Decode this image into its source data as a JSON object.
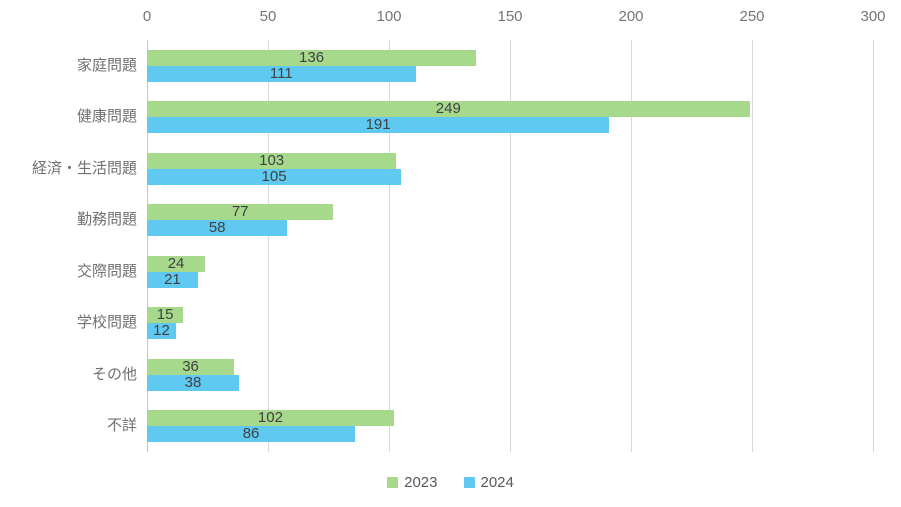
{
  "chart_data": {
    "type": "bar",
    "orientation": "horizontal",
    "title": "",
    "xlabel": "",
    "ylabel": "",
    "categories": [
      "家庭問題",
      "健康問題",
      "経済・生活問題",
      "勤務問題",
      "交際問題",
      "学校問題",
      "その他",
      "不詳"
    ],
    "series": [
      {
        "name": "2023",
        "color": "#a7d98c",
        "values": [
          136,
          249,
          103,
          77,
          24,
          15,
          36,
          102
        ]
      },
      {
        "name": "2024",
        "color": "#5fc9f1",
        "values": [
          111,
          191,
          105,
          58,
          21,
          12,
          38,
          86
        ]
      }
    ],
    "xlim": [
      0,
      300
    ],
    "xticks": [
      0,
      50,
      100,
      150,
      200,
      250,
      300
    ],
    "grid": true,
    "data_labels": "inside-center",
    "legend_position": "bottom"
  },
  "colors": {
    "background": "#ffffff",
    "gridline": "#d9d9d9",
    "zero_axis": "#c6c6c6",
    "tick_text": "#757575",
    "category_text": "#707070",
    "value_text": "#404040",
    "legend_text": "#595959",
    "series_2023": "#a7d98c",
    "series_2024": "#5fc9f1"
  }
}
